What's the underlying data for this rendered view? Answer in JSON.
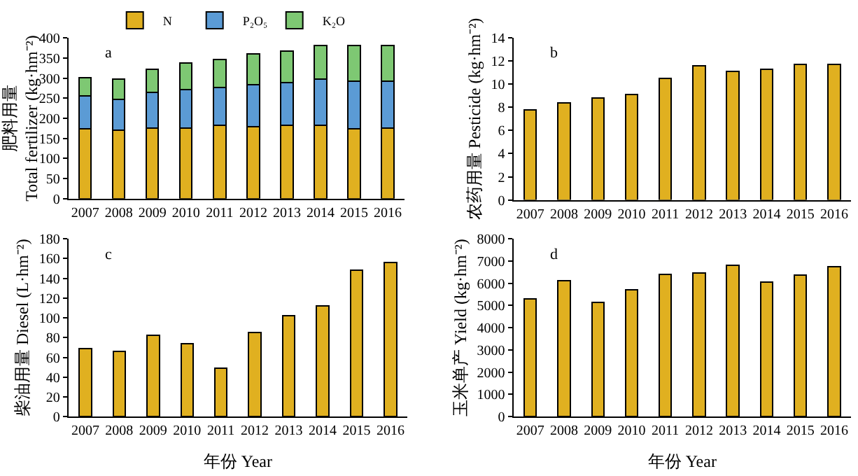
{
  "chart_data": [
    {
      "type": "bar",
      "stacked": true,
      "categories": [
        "2007",
        "2008",
        "2009",
        "2010",
        "2011",
        "2012",
        "2013",
        "2014",
        "2015",
        "2016"
      ],
      "ylabel": "肥料用量\nTotal fertilizer (kg·hm⁻²)",
      "annotations": [
        "a"
      ],
      "legend": "top left",
      "ylim": [
        0,
        400
      ],
      "yticks": [
        0,
        50,
        100,
        150,
        200,
        250,
        300,
        350,
        400
      ],
      "series": [
        {
          "name": "N",
          "color": "#e0b020",
          "values": [
            173,
            170,
            176,
            176,
            182,
            179,
            182,
            182,
            173,
            176
          ]
        },
        {
          "name": "P₂O₅",
          "color": "#5b9bd5",
          "values": [
            83,
            77,
            89,
            95,
            95,
            104,
            107,
            116,
            119,
            116
          ]
        },
        {
          "name": "K₂O",
          "color": "#7ec873",
          "values": [
            45,
            51,
            57,
            66,
            69,
            78,
            78,
            84,
            90,
            90
          ]
        }
      ]
    },
    {
      "type": "bar",
      "categories": [
        "2007",
        "2008",
        "2009",
        "2010",
        "2011",
        "2012",
        "2013",
        "2014",
        "2015",
        "2016"
      ],
      "ylabel": "农药用量 Pesticide (kg·hm⁻²)",
      "annotations": [
        "b"
      ],
      "ylim": [
        0,
        14
      ],
      "yticks": [
        0,
        2,
        4,
        6,
        8,
        10,
        12,
        14
      ],
      "series": [
        {
          "color": "#e0b020",
          "values": [
            7.8,
            8.4,
            8.8,
            9.1,
            10.5,
            11.6,
            11.1,
            11.3,
            11.7,
            11.7
          ]
        }
      ]
    },
    {
      "type": "bar",
      "categories": [
        "2007",
        "2008",
        "2009",
        "2010",
        "2011",
        "2012",
        "2013",
        "2014",
        "2015",
        "2016"
      ],
      "xlabel": "年份 Year",
      "ylabel": "柴油用量 Diesel (L·hm⁻²)",
      "annotations": [
        "c"
      ],
      "ylim": [
        0,
        180
      ],
      "yticks": [
        0,
        20,
        40,
        60,
        80,
        100,
        120,
        140,
        160,
        180
      ],
      "series": [
        {
          "color": "#e0b020",
          "values": [
            69,
            66,
            82,
            74,
            49,
            85,
            102,
            112,
            148,
            156
          ]
        }
      ]
    },
    {
      "type": "bar",
      "categories": [
        "2007",
        "2008",
        "2009",
        "2010",
        "2011",
        "2012",
        "2013",
        "2014",
        "2015",
        "2016"
      ],
      "xlabel": "年份 Year",
      "ylabel": "玉米单产 Yield (kg·hm⁻²)",
      "annotations": [
        "d"
      ],
      "ylim": [
        0,
        8000
      ],
      "yticks": [
        0,
        1000,
        2000,
        3000,
        4000,
        5000,
        6000,
        7000,
        8000
      ],
      "series": [
        {
          "color": "#e0b020",
          "values": [
            5300,
            6100,
            5150,
            5700,
            6400,
            6450,
            6800,
            6050,
            6350,
            6750
          ]
        }
      ]
    }
  ]
}
